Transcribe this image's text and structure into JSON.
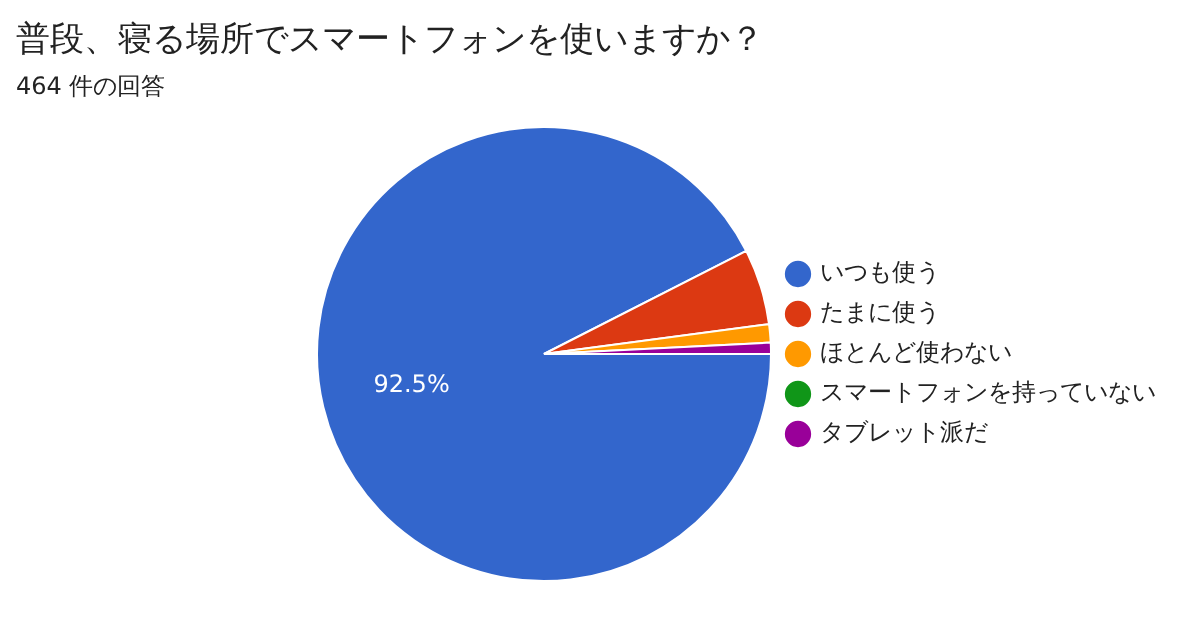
{
  "chart_data": {
    "type": "pie",
    "title": "普段、寝る場所でスマートフォンを使いますか？",
    "subtitle": "464 件の回答",
    "categories": [
      "いつも使う",
      "たまに使う",
      "ほとんど使わない",
      "スマートフォンを持っていない",
      "タブレット派だ"
    ],
    "values": [
      92.5,
      5.4,
      1.3,
      null,
      0.8
    ],
    "value_labels": [
      "92.5%",
      null,
      null,
      null,
      null
    ],
    "colors": [
      "#3366cc",
      "#dc3912",
      "#ff9900",
      "#109618",
      "#990099"
    ],
    "legend": "right"
  }
}
